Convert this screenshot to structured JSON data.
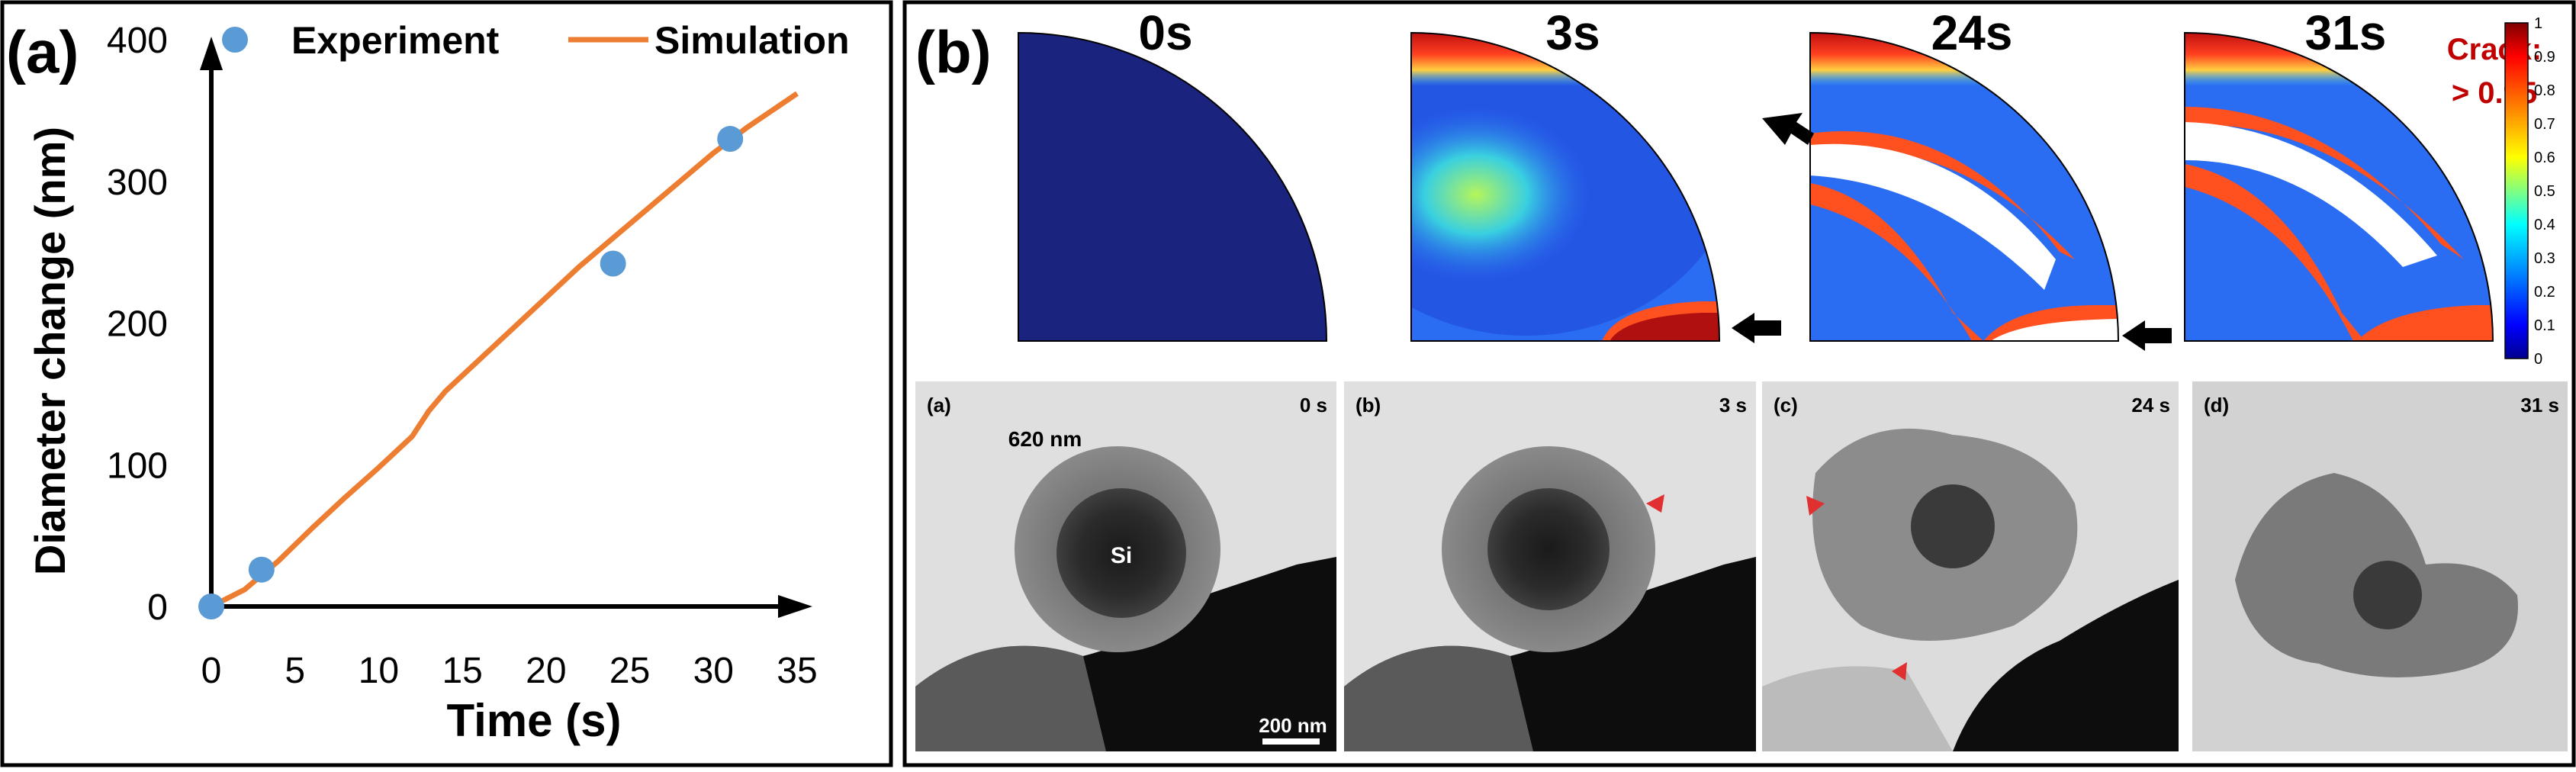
{
  "panel_a": {
    "label": "(a)",
    "chart_data": {
      "type": "line",
      "title": "",
      "xlabel": "Time (s)",
      "ylabel": "Diameter change (nm)",
      "xlim": [
        0,
        35
      ],
      "ylim": [
        0,
        400
      ],
      "xticks": [
        "0",
        "5",
        "10",
        "15",
        "20",
        "25",
        "30",
        "35"
      ],
      "yticks": [
        "0",
        "100",
        "200",
        "300",
        "400"
      ],
      "grid": false,
      "legend_position": "top",
      "series": [
        {
          "name": "Experiment",
          "kind": "scatter",
          "color": "#5b9bd5",
          "x": [
            0,
            3,
            24,
            31
          ],
          "y": [
            0,
            26,
            242,
            330
          ]
        },
        {
          "name": "Simulation",
          "kind": "line",
          "color": "#ed7d31",
          "x": [
            0,
            2,
            4,
            6,
            8,
            10,
            12,
            13,
            14,
            16,
            18,
            20,
            22,
            24,
            26,
            28,
            30,
            32,
            34,
            35
          ],
          "y": [
            0,
            12,
            32,
            55,
            77,
            98,
            120,
            138,
            152,
            174,
            196,
            218,
            240,
            260,
            280,
            300,
            320,
            338,
            354,
            362
          ]
        }
      ]
    }
  },
  "panel_b": {
    "label": "(b)",
    "sim_times": [
      "0s",
      "3s",
      "24s",
      "31s"
    ],
    "crack_label": "Crack:",
    "crack_value": "> 0.95",
    "crack_color": "#c00000",
    "colorbar": {
      "ticks": [
        "1",
        "0.9",
        "0.8",
        "0.7",
        "0.6",
        "0.5",
        "0.4",
        "0.3",
        "0.2",
        "0.1",
        "0"
      ],
      "colors": [
        "#7f0000",
        "#ff0000",
        "#ff8000",
        "#ffff00",
        "#80ff80",
        "#00ffff",
        "#0080ff",
        "#0000ff",
        "#00008f"
      ]
    },
    "tem": [
      {
        "label": "(a)",
        "time": "0 s",
        "annotation": "620 nm",
        "core": "Si",
        "scale": "200 nm"
      },
      {
        "label": "(b)",
        "time": "3 s"
      },
      {
        "label": "(c)",
        "time": "24 s"
      },
      {
        "label": "(d)",
        "time": "31 s"
      }
    ]
  }
}
